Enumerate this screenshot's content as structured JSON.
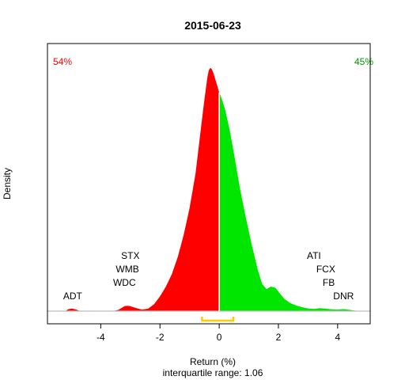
{
  "chart_data": {
    "type": "area",
    "title": "2015-06-23",
    "xlabel": "Return (%)",
    "subtitle": "interquartile range: 1.06",
    "ylabel": "Density",
    "xlim": [
      -5.8,
      5.1
    ],
    "ylim": [
      0,
      1.05
    ],
    "x_ticks": [
      -4,
      -2,
      0,
      2,
      4
    ],
    "negative_share": "54%",
    "positive_share": "45%",
    "colors": {
      "negative": "#ff0000",
      "positive": "#00e600",
      "iqr": "#ffcc00",
      "baseline": "#bebebe",
      "divider": "#ffffff"
    },
    "density": {
      "x": [
        -5.2,
        -5.1,
        -5.0,
        -4.95,
        -4.8,
        -4.7,
        -4.4,
        -4.0,
        -3.6,
        -3.4,
        -3.2,
        -3.1,
        -3.0,
        -2.8,
        -2.6,
        -2.4,
        -2.2,
        -2.0,
        -1.8,
        -1.6,
        -1.4,
        -1.2,
        -1.0,
        -0.8,
        -0.7,
        -0.6,
        -0.5,
        -0.4,
        -0.35,
        -0.3,
        -0.25,
        -0.2,
        -0.1,
        0.0,
        0.1,
        0.2,
        0.35,
        0.5,
        0.7,
        0.9,
        1.1,
        1.3,
        1.45,
        1.6,
        1.75,
        1.9,
        2.05,
        2.2,
        2.4,
        2.6,
        2.8,
        3.0,
        3.2,
        3.4,
        3.6,
        3.8,
        4.0,
        4.2,
        4.4,
        4.6,
        4.7
      ],
      "y": [
        0.0,
        0.007,
        0.01,
        0.01,
        0.005,
        0.0,
        0.0,
        0.0,
        0.0,
        0.005,
        0.02,
        0.022,
        0.02,
        0.012,
        0.006,
        0.01,
        0.028,
        0.06,
        0.1,
        0.15,
        0.22,
        0.31,
        0.42,
        0.56,
        0.66,
        0.76,
        0.86,
        0.95,
        0.98,
        0.99,
        0.985,
        0.97,
        0.93,
        0.89,
        0.86,
        0.82,
        0.74,
        0.64,
        0.5,
        0.38,
        0.27,
        0.17,
        0.11,
        0.09,
        0.1,
        0.095,
        0.072,
        0.05,
        0.033,
        0.023,
        0.016,
        0.011,
        0.009,
        0.012,
        0.01,
        0.007,
        0.006,
        0.008,
        0.005,
        0.002,
        0.0
      ]
    },
    "iqr": [
      -0.58,
      0.48
    ],
    "left_labels": [
      {
        "label": "STX",
        "x": -3.0,
        "row": 4
      },
      {
        "label": "WMB",
        "x": -3.1,
        "row": 3
      },
      {
        "label": "WDC",
        "x": -3.2,
        "row": 2
      },
      {
        "label": "ADT",
        "x": -4.95,
        "row": 1
      }
    ],
    "right_labels": [
      {
        "label": "ATI",
        "x": 3.2,
        "row": 4
      },
      {
        "label": "FCX",
        "x": 3.6,
        "row": 3
      },
      {
        "label": "FB",
        "x": 3.7,
        "row": 2
      },
      {
        "label": "DNR",
        "x": 4.2,
        "row": 1
      }
    ]
  }
}
